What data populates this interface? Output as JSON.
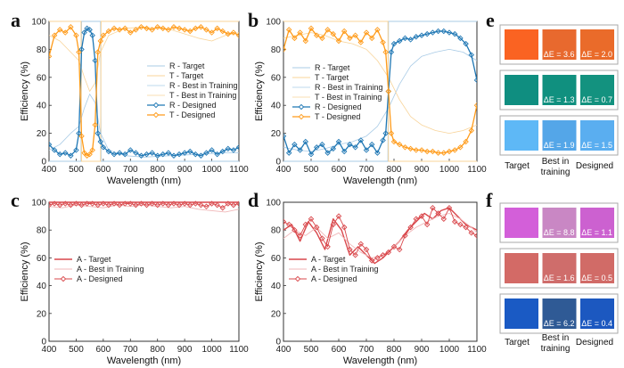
{
  "chart_data": [
    {
      "panel": "a",
      "type": "line",
      "xlabel": "Wavelength (nm)",
      "ylabel": "Efficiency (%)",
      "xlim": [
        400,
        1100
      ],
      "ylim": [
        0,
        100
      ],
      "xticks": [
        400,
        500,
        600,
        700,
        800,
        900,
        1000,
        1100
      ],
      "yticks": [
        0,
        20,
        40,
        60,
        80,
        100
      ],
      "legend": [
        "R - Target",
        "T - Target",
        "R - Best in Training",
        "T - Best in Training",
        "R - Designed",
        "T - Designed"
      ],
      "series": [
        {
          "name": "R - Target",
          "x": [
            400,
            518,
            520,
            590,
            592,
            1100
          ],
          "y": [
            0,
            0,
            100,
            100,
            0,
            0
          ]
        },
        {
          "name": "T - Target",
          "x": [
            400,
            518,
            520,
            590,
            592,
            1100
          ],
          "y": [
            100,
            100,
            0,
            0,
            100,
            100
          ]
        },
        {
          "name": "R - Best in Training",
          "x": [
            400,
            440,
            480,
            510,
            530,
            550,
            570,
            590,
            620,
            680,
            750,
            850,
            950,
            1050,
            1100
          ],
          "y": [
            8,
            12,
            20,
            25,
            38,
            48,
            42,
            20,
            8,
            4,
            3,
            4,
            5,
            6,
            6
          ]
        },
        {
          "name": "T - Best in Training",
          "x": [
            400,
            440,
            480,
            510,
            530,
            550,
            570,
            590,
            620,
            680,
            750,
            850,
            950,
            1000,
            1050,
            1100
          ],
          "y": [
            90,
            86,
            78,
            72,
            60,
            50,
            56,
            78,
            90,
            95,
            96,
            94,
            88,
            86,
            90,
            92
          ]
        },
        {
          "name": "R - Designed",
          "x": [
            400,
            420,
            440,
            460,
            480,
            500,
            510,
            520,
            530,
            540,
            550,
            560,
            570,
            580,
            590,
            600,
            620,
            640,
            660,
            680,
            700,
            720,
            740,
            760,
            780,
            800,
            820,
            840,
            860,
            880,
            900,
            920,
            940,
            960,
            980,
            1000,
            1020,
            1040,
            1060,
            1080,
            1100
          ],
          "y": [
            12,
            8,
            5,
            6,
            4,
            8,
            20,
            80,
            92,
            95,
            94,
            90,
            72,
            20,
            14,
            10,
            7,
            5,
            6,
            5,
            8,
            6,
            4,
            5,
            6,
            4,
            5,
            6,
            4,
            5,
            6,
            7,
            5,
            4,
            6,
            8,
            5,
            7,
            9,
            8,
            10
          ]
        },
        {
          "name": "T - Designed",
          "x": [
            400,
            420,
            440,
            460,
            480,
            500,
            510,
            520,
            530,
            540,
            550,
            560,
            570,
            580,
            590,
            600,
            620,
            640,
            660,
            680,
            700,
            720,
            740,
            760,
            780,
            800,
            820,
            840,
            860,
            880,
            900,
            920,
            940,
            960,
            980,
            1000,
            1020,
            1040,
            1060,
            1080,
            1100
          ],
          "y": [
            75,
            90,
            94,
            92,
            96,
            90,
            78,
            18,
            6,
            4,
            5,
            8,
            26,
            78,
            86,
            90,
            93,
            95,
            94,
            95,
            92,
            94,
            96,
            95,
            94,
            96,
            95,
            94,
            96,
            95,
            94,
            93,
            95,
            96,
            94,
            92,
            95,
            93,
            91,
            92,
            90
          ]
        }
      ]
    },
    {
      "panel": "b",
      "type": "line",
      "xlabel": "Wavelength (nm)",
      "ylabel": "Efficiency (%)",
      "xlim": [
        400,
        1100
      ],
      "ylim": [
        0,
        100
      ],
      "xticks": [
        400,
        500,
        600,
        700,
        800,
        900,
        1000,
        1100
      ],
      "yticks": [
        0,
        20,
        40,
        60,
        80,
        100
      ],
      "legend": [
        "R - Target",
        "T - Target",
        "R - Best in Training",
        "T - Best in Training",
        "R - Designed",
        "T - Designed"
      ],
      "series": [
        {
          "name": "R - Target",
          "x": [
            400,
            778,
            780,
            1100
          ],
          "y": [
            0,
            0,
            100,
            100
          ]
        },
        {
          "name": "T - Target",
          "x": [
            400,
            778,
            780,
            1100
          ],
          "y": [
            100,
            100,
            0,
            0
          ]
        },
        {
          "name": "R - Best in Training",
          "x": [
            400,
            450,
            500,
            550,
            600,
            650,
            700,
            740,
            780,
            820,
            860,
            900,
            950,
            1000,
            1050,
            1100
          ],
          "y": [
            10,
            8,
            7,
            9,
            12,
            14,
            18,
            25,
            38,
            55,
            68,
            75,
            78,
            80,
            78,
            72
          ]
        },
        {
          "name": "T - Best in Training",
          "x": [
            400,
            450,
            500,
            550,
            600,
            650,
            700,
            740,
            780,
            820,
            860,
            900,
            950,
            1000,
            1050,
            1100
          ],
          "y": [
            88,
            90,
            92,
            90,
            86,
            84,
            80,
            72,
            60,
            44,
            32,
            26,
            22,
            20,
            22,
            26
          ]
        },
        {
          "name": "R - Designed",
          "x": [
            400,
            420,
            440,
            460,
            480,
            500,
            520,
            540,
            560,
            580,
            600,
            620,
            640,
            660,
            680,
            700,
            720,
            740,
            760,
            770,
            780,
            790,
            800,
            820,
            840,
            860,
            880,
            900,
            920,
            940,
            960,
            980,
            1000,
            1020,
            1040,
            1060,
            1080,
            1100
          ],
          "y": [
            18,
            6,
            12,
            8,
            14,
            5,
            10,
            12,
            6,
            9,
            14,
            7,
            12,
            10,
            15,
            8,
            12,
            6,
            15,
            20,
            50,
            78,
            84,
            86,
            88,
            87,
            89,
            90,
            91,
            92,
            93,
            93,
            92,
            91,
            88,
            84,
            76,
            58
          ]
        },
        {
          "name": "T - Designed",
          "x": [
            400,
            420,
            440,
            460,
            480,
            500,
            520,
            540,
            560,
            580,
            600,
            620,
            640,
            660,
            680,
            700,
            720,
            740,
            760,
            770,
            780,
            790,
            800,
            820,
            840,
            860,
            880,
            900,
            920,
            940,
            960,
            980,
            1000,
            1020,
            1040,
            1060,
            1080,
            1100
          ],
          "y": [
            80,
            94,
            88,
            92,
            86,
            95,
            90,
            88,
            94,
            91,
            86,
            93,
            88,
            90,
            85,
            92,
            88,
            94,
            85,
            78,
            50,
            20,
            14,
            12,
            10,
            9,
            8,
            8,
            7,
            7,
            6,
            6,
            7,
            8,
            10,
            14,
            22,
            40
          ]
        }
      ]
    },
    {
      "panel": "c",
      "type": "line",
      "xlabel": "Wavelength (nm)",
      "ylabel": "Efficiency (%)",
      "xlim": [
        400,
        1100
      ],
      "ylim": [
        0,
        100
      ],
      "xticks": [
        400,
        500,
        600,
        700,
        800,
        900,
        1000,
        1100
      ],
      "yticks": [
        0,
        20,
        40,
        60,
        80,
        100
      ],
      "legend": [
        "A - Target",
        "A - Best in Training",
        "A - Designed"
      ],
      "series": [
        {
          "name": "A - Target",
          "x": [
            400,
            1100
          ],
          "y": [
            100,
            100
          ]
        },
        {
          "name": "A - Best in Training",
          "x": [
            400,
            450,
            500,
            550,
            600,
            650,
            700,
            750,
            800,
            850,
            900,
            950,
            1000,
            1050,
            1100
          ],
          "y": [
            97,
            96,
            98,
            97,
            96,
            98,
            97,
            98,
            97,
            96,
            97,
            95,
            94,
            93,
            95
          ]
        },
        {
          "name": "A - Designed",
          "x": [
            400,
            420,
            440,
            460,
            480,
            500,
            520,
            540,
            560,
            580,
            600,
            620,
            640,
            660,
            680,
            700,
            720,
            740,
            760,
            780,
            800,
            820,
            840,
            860,
            880,
            900,
            920,
            940,
            960,
            980,
            1000,
            1020,
            1040,
            1060,
            1080,
            1100
          ],
          "y": [
            98,
            99,
            98,
            99,
            98,
            99,
            98,
            99,
            99,
            98,
            99,
            98,
            99,
            98,
            99,
            99,
            98,
            99,
            98,
            99,
            98,
            99,
            98,
            99,
            98,
            99,
            98,
            99,
            98,
            97,
            99,
            98,
            96,
            99,
            98,
            99
          ]
        }
      ]
    },
    {
      "panel": "d",
      "type": "line",
      "xlabel": "Wavelength (nm)",
      "ylabel": "Efficiency (%)",
      "xlim": [
        400,
        1100
      ],
      "ylim": [
        0,
        100
      ],
      "xticks": [
        400,
        500,
        600,
        700,
        800,
        900,
        1000,
        1100
      ],
      "yticks": [
        0,
        20,
        40,
        60,
        80,
        100
      ],
      "legend": [
        "A - Target",
        "A - Best in Training",
        "A - Designed"
      ],
      "series": [
        {
          "name": "A - Target",
          "x": [
            400,
            430,
            460,
            490,
            520,
            550,
            580,
            610,
            640,
            670,
            700,
            730,
            760,
            790,
            820,
            850,
            880,
            910,
            940,
            970,
            1000,
            1030,
            1060,
            1100
          ],
          "y": [
            80,
            84,
            72,
            86,
            78,
            66,
            88,
            80,
            62,
            68,
            62,
            56,
            60,
            66,
            72,
            80,
            86,
            92,
            88,
            94,
            96,
            90,
            84,
            80
          ]
        },
        {
          "name": "A - Best in Training",
          "x": [
            400,
            440,
            480,
            520,
            560,
            600,
            640,
            680,
            720,
            760,
            800,
            840,
            880,
            920,
            960,
            1000,
            1040,
            1080,
            1100
          ],
          "y": [
            74,
            80,
            76,
            82,
            74,
            78,
            70,
            64,
            60,
            62,
            68,
            76,
            82,
            86,
            90,
            92,
            88,
            82,
            78
          ]
        },
        {
          "name": "A - Designed",
          "x": [
            400,
            420,
            440,
            460,
            480,
            500,
            520,
            540,
            560,
            580,
            600,
            620,
            640,
            660,
            680,
            700,
            720,
            740,
            760,
            780,
            800,
            820,
            840,
            860,
            880,
            900,
            920,
            940,
            960,
            980,
            1000,
            1020,
            1040,
            1060,
            1080,
            1100
          ],
          "y": [
            86,
            84,
            80,
            76,
            84,
            88,
            82,
            74,
            68,
            84,
            90,
            82,
            66,
            62,
            70,
            66,
            58,
            60,
            62,
            64,
            68,
            66,
            76,
            82,
            88,
            90,
            84,
            96,
            92,
            88,
            96,
            86,
            84,
            82,
            78,
            76
          ]
        }
      ]
    }
  ],
  "swatches_e": {
    "column_labels": [
      "Target",
      "Best in training",
      "Designed"
    ],
    "rows": [
      {
        "target": "#fa6322",
        "best": "#e8692e",
        "designed": "#ea6b2a",
        "de_best": "ΔE = 3.6",
        "de_designed": "ΔE = 2.0"
      },
      {
        "target": "#0f8e80",
        "best": "#10907f",
        "designed": "#13927f",
        "de_best": "ΔE = 1.3",
        "de_designed": "ΔE = 0.7"
      },
      {
        "target": "#5eb8f6",
        "best": "#54a6e8",
        "designed": "#5aaef0",
        "de_best": "ΔE = 1.9",
        "de_designed": "ΔE = 1.5"
      }
    ]
  },
  "swatches_f": {
    "column_labels": [
      "Target",
      "Best in training",
      "Designed"
    ],
    "rows": [
      {
        "target": "#d35fd9",
        "best": "#c987c4",
        "designed": "#cc61d0",
        "de_best": "ΔE = 8.8",
        "de_designed": "ΔE = 1.1"
      },
      {
        "target": "#d36a66",
        "best": "#cf6d6b",
        "designed": "#d16b67",
        "de_best": "ΔE = 1.6",
        "de_designed": "ΔE = 0.5"
      },
      {
        "target": "#1a5ac4",
        "best": "#2f5a95",
        "designed": "#1c58c0",
        "de_best": "ΔE = 6.2",
        "de_designed": "ΔE = 0.4"
      }
    ]
  },
  "panel_letters": [
    "a",
    "b",
    "c",
    "d",
    "e",
    "f"
  ],
  "colors": {
    "R": "#1f77b4",
    "T": "#ff9b1a",
    "R_light": "#a9cbe6",
    "T_light": "#f8d49a",
    "A": "#d9474b",
    "A_light": "#f0b7b8"
  }
}
